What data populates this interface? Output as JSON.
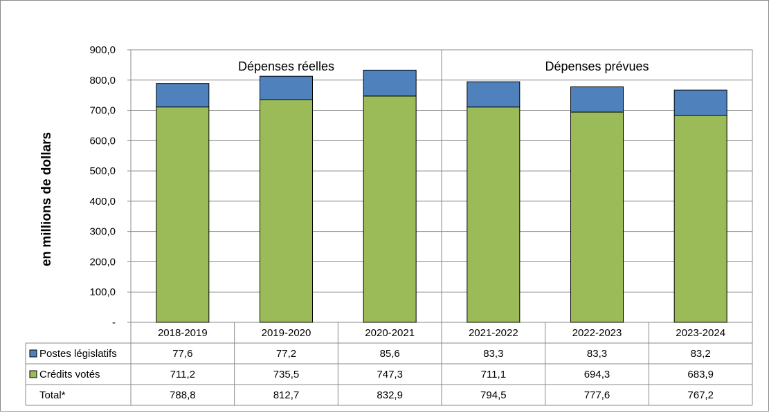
{
  "chart_data": {
    "type": "bar",
    "stacked": true,
    "title": "",
    "ylabel": "en millions  de dollars",
    "ylim": [
      0,
      900
    ],
    "yticks": [
      "-",
      "100,0",
      "200,0",
      "300,0",
      "400,0",
      "500,0",
      "600,0",
      "700,0",
      "800,0",
      "900,0"
    ],
    "groups": [
      {
        "label": "Dépenses réelles",
        "categories": [
          "2018-2019",
          "2019-2020",
          "2020-2021"
        ]
      },
      {
        "label": "Dépenses prévues",
        "categories": [
          "2021-2022",
          "2022-2023",
          "2023-2024"
        ]
      }
    ],
    "categories": [
      "2018-2019",
      "2019-2020",
      "2020-2021",
      "2021-2022",
      "2022-2023",
      "2023-2024"
    ],
    "series": [
      {
        "name": "Crédits votés",
        "color": "#9bbb59",
        "values": [
          711.2,
          735.5,
          747.3,
          711.1,
          694.3,
          683.9
        ],
        "labels": [
          "711,2",
          "735,5",
          "747,3",
          "711,1",
          "694,3",
          "683,9"
        ]
      },
      {
        "name": "Postes législatifs",
        "color": "#4f81bd",
        "values": [
          77.6,
          77.2,
          85.6,
          83.3,
          83.3,
          83.2
        ],
        "labels": [
          "77,6",
          "77,2",
          "85,6",
          "83,3",
          "83,3",
          "83,2"
        ]
      }
    ],
    "table": {
      "row_order": [
        "Postes législatifs",
        "Crédits votés",
        "Total*"
      ],
      "total_label": "Total*",
      "totals": [
        "788,8",
        "812,7",
        "832,9",
        "794,5",
        "777,6",
        "767,2"
      ]
    },
    "grid": true
  }
}
